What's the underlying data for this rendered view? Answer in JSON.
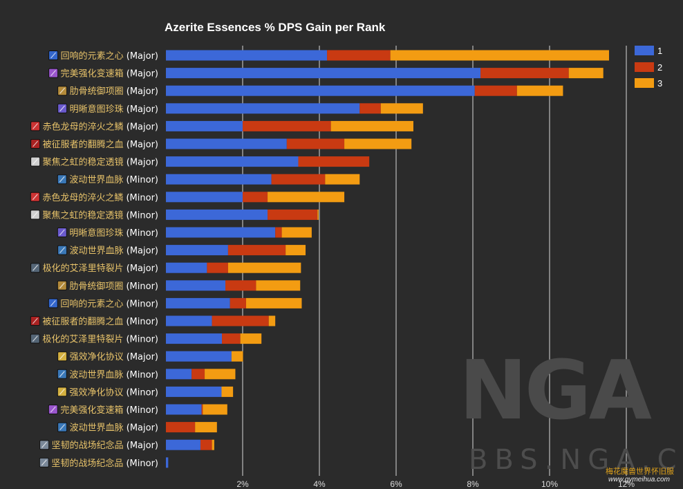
{
  "chart_data": {
    "type": "bar",
    "orientation": "horizontal",
    "stacked": true,
    "title": "Azerite Essences % DPS Gain per Rank",
    "xlim": [
      0,
      12
    ],
    "x_ticks": [
      "2%",
      "4%",
      "6%",
      "8%",
      "10%",
      "12%"
    ],
    "x_tick_values": [
      2,
      4,
      6,
      8,
      10,
      12
    ],
    "grid": true,
    "legend_position": "top-right",
    "legend": [
      "1",
      "2",
      "3"
    ],
    "colors": [
      "#3c68d8",
      "#c93a12",
      "#f39c12"
    ],
    "icon_colors": [
      "#3366cc",
      "#9955cc",
      "#b38a3a",
      "#6a5acd",
      "#cc3333",
      "#aa2222",
      "#d0d0d0",
      "#3a78b8",
      "#cc3333",
      "#d0d0d0",
      "#6a5acd",
      "#3a78b8",
      "#556677",
      "#b38a3a",
      "#3366cc",
      "#aa2222",
      "#556677",
      "#d4b040",
      "#3a78b8",
      "#d4b040",
      "#9955cc",
      "#3a78b8",
      "#7a8899",
      "#7a8899"
    ],
    "categories": [
      "回响的元素之心 (Major)",
      "完美强化变速箱 (Major)",
      "肋骨统御项圈 (Major)",
      "明晰意图珍珠 (Major)",
      "赤色龙母的淬火之鳞 (Major)",
      "被征服者的翻腾之血 (Major)",
      "聚焦之虹的稳定透镜 (Major)",
      "波动世界血脉 (Minor)",
      "赤色龙母的淬火之鳞 (Minor)",
      "聚焦之虹的稳定透镜 (Minor)",
      "明晰意图珍珠 (Minor)",
      "波动世界血脉 (Major)",
      "极化的艾泽里特裂片 (Major)",
      "肋骨统御项圈 (Minor)",
      "回响的元素之心 (Minor)",
      "被征服者的翻腾之血 (Minor)",
      "极化的艾泽里特裂片 (Minor)",
      "强效净化协议 (Major)",
      "波动世界血脉 (Minor)",
      "强效净化协议 (Minor)",
      "完美强化变速箱 (Minor)",
      "波动世界血脉 (Major)",
      "坚韧的战场纪念品 (Major)",
      "坚韧的战场纪念品 (Minor)"
    ],
    "series": [
      {
        "name": "1",
        "values": [
          4.2,
          8.2,
          8.05,
          5.05,
          2.0,
          3.15,
          3.45,
          2.75,
          2.0,
          2.65,
          2.85,
          1.62,
          1.07,
          1.55,
          1.67,
          1.2,
          1.46,
          1.71,
          0.67,
          1.45,
          0.93,
          0.0,
          0.9,
          0.06
        ]
      },
      {
        "name": "2",
        "values": [
          1.65,
          2.3,
          1.1,
          0.55,
          2.3,
          1.5,
          1.85,
          1.4,
          0.65,
          1.3,
          0.17,
          1.5,
          0.55,
          0.8,
          0.42,
          1.48,
          0.48,
          0.0,
          0.34,
          0.0,
          0.03,
          0.76,
          0.3,
          0.0
        ]
      },
      {
        "name": "3",
        "values": [
          5.7,
          0.9,
          1.2,
          1.1,
          2.15,
          1.75,
          0.0,
          0.9,
          2.0,
          0.03,
          0.78,
          0.52,
          1.9,
          1.15,
          1.45,
          0.17,
          0.55,
          0.3,
          0.8,
          0.3,
          0.64,
          0.57,
          0.06,
          0.0
        ]
      }
    ]
  },
  "watermarks": {
    "logo": "NGA",
    "bbs": "BBS.NGA.CN",
    "cn": "梅花魔兽世界怀旧服",
    "url": "www.gymeihua.com"
  }
}
